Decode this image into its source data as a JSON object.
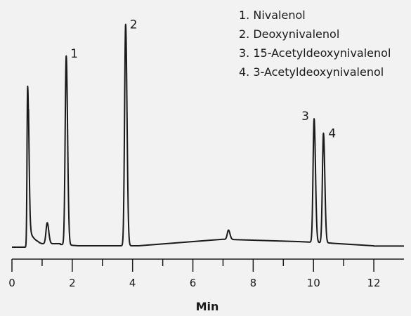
{
  "chart_data": {
    "type": "line",
    "xlabel": "Min",
    "ylabel": "",
    "xlim": [
      0,
      13
    ],
    "x_ticks": [
      0,
      2,
      4,
      6,
      8,
      10,
      12
    ],
    "x_minor_ticks": [
      1,
      3,
      5,
      7,
      9,
      11
    ],
    "grid": false,
    "legend_position": "top-right",
    "legend": [
      "1. Nivalenol",
      "2. Deoxynivalenol",
      "3. 15-Acetyldeoxynivalenol",
      "4. 3-Acetyldeoxynivalenol"
    ],
    "peaks": [
      {
        "label": "1",
        "x": 1.8,
        "height": 0.81
      },
      {
        "label": "2",
        "x": 3.77,
        "height": 0.95
      },
      {
        "label": "3",
        "x": 10.02,
        "height": 0.53
      },
      {
        "label": "4",
        "x": 10.33,
        "height": 0.47
      }
    ],
    "minor_peaks": [
      {
        "x": 0.52,
        "height": 0.65
      },
      {
        "x": 1.17,
        "height": 0.09
      },
      {
        "x": 7.18,
        "height": 0.04
      }
    ],
    "color": "#1a1a1a",
    "background": "#f2f2f2"
  }
}
